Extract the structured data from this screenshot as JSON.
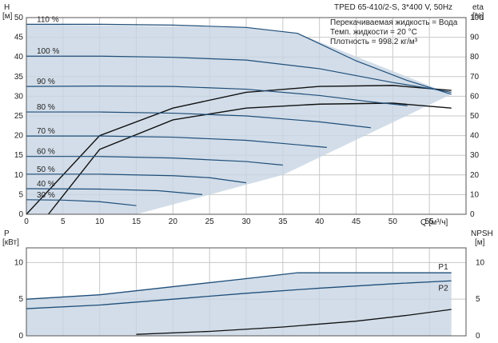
{
  "chart_data": [
    {
      "type": "line",
      "title": "TPED 65-410/2-S, 3*400 V, 50Hz",
      "annotations": [
        "Перекачиваемая жидкость = Вода",
        "Темп. жидкости = 20 °C",
        "Плотность = 998.2 кг/м³"
      ],
      "xlabel": "Q [м³/ч]",
      "ylabel_left": "H",
      "ylabel_left_unit": "[м]",
      "ylabel_right": "eta",
      "ylabel_right_unit": "[%]",
      "xlim": [
        0,
        60
      ],
      "ylim_left": [
        0,
        50
      ],
      "ylim_right": [
        0,
        100
      ],
      "xticks": [
        0,
        5,
        10,
        15,
        20,
        25,
        30,
        35,
        40,
        45,
        50,
        55
      ],
      "yticks_left": [
        0,
        5,
        10,
        15,
        20,
        25,
        30,
        35,
        40,
        45,
        50
      ],
      "yticks_right": [
        0,
        10,
        20,
        30,
        40,
        50,
        60,
        70,
        80,
        90,
        100
      ],
      "grid": true,
      "series": [
        {
          "name": "110 %",
          "x": [
            0,
            10,
            20,
            30,
            37,
            45,
            52,
            58
          ],
          "y": [
            48.3,
            48.3,
            48.1,
            47.5,
            46,
            39,
            34,
            30.5
          ]
        },
        {
          "name": "100 %",
          "x": [
            0,
            10,
            20,
            30,
            40,
            50,
            55,
            58
          ],
          "y": [
            40.2,
            40.2,
            39.9,
            39.2,
            37,
            33.5,
            32,
            31
          ]
        },
        {
          "name": "90 %",
          "x": [
            0,
            10,
            20,
            30,
            40,
            47,
            52
          ],
          "y": [
            32.5,
            32.6,
            32.5,
            31.8,
            30.2,
            28.6,
            27.6
          ]
        },
        {
          "name": "80 %",
          "x": [
            0,
            10,
            20,
            30,
            40,
            47
          ],
          "y": [
            26,
            26,
            25.7,
            25,
            23.5,
            22
          ]
        },
        {
          "name": "70 %",
          "x": [
            0,
            10,
            20,
            30,
            35,
            41
          ],
          "y": [
            19.9,
            19.9,
            19.6,
            18.8,
            18,
            17
          ]
        },
        {
          "name": "60 %",
          "x": [
            0,
            10,
            20,
            30,
            35
          ],
          "y": [
            14.7,
            14.7,
            14.3,
            13.4,
            12.5
          ]
        },
        {
          "name": "50 %",
          "x": [
            0,
            10,
            20,
            25,
            30
          ],
          "y": [
            10.2,
            10.2,
            9.8,
            9.3,
            8
          ]
        },
        {
          "name": "40 %",
          "x": [
            0,
            10,
            18,
            24
          ],
          "y": [
            6.5,
            6.4,
            6.0,
            5.0
          ]
        },
        {
          "name": "30 %",
          "x": [
            0,
            5,
            10,
            15
          ],
          "y": [
            3.7,
            3.6,
            3.2,
            2.2
          ]
        }
      ],
      "efficiency_series": [
        {
          "x": [
            0,
            10,
            20,
            30,
            40,
            50,
            58
          ],
          "y": [
            0,
            40,
            54,
            62,
            65,
            65.5,
            63
          ]
        },
        {
          "x": [
            3,
            10,
            20,
            30,
            40,
            50,
            58
          ],
          "y": [
            0,
            33,
            48,
            54,
            56,
            56.5,
            54
          ]
        }
      ],
      "operating_area_vertices": [
        [
          0,
          48.3
        ],
        [
          30,
          47.5
        ],
        [
          37,
          46
        ],
        [
          58,
          30.5
        ],
        [
          35,
          10
        ],
        [
          15,
          0
        ],
        [
          0,
          0
        ]
      ]
    },
    {
      "type": "line",
      "ylabel_left": "P",
      "ylabel_left_unit": "[кВт]",
      "ylabel_right": "NPSH",
      "ylabel_right_unit": "[м]",
      "xlim": [
        0,
        60
      ],
      "ylim_left": [
        0,
        12
      ],
      "ylim_right": [
        0,
        12
      ],
      "yticks_left": [
        0,
        5,
        10
      ],
      "yticks_right": [
        0,
        5,
        10
      ],
      "grid": true,
      "series": [
        {
          "name": "P1",
          "x": [
            0,
            10,
            20,
            30,
            37,
            45,
            52,
            58
          ],
          "y": [
            5.0,
            5.6,
            6.7,
            7.8,
            8.6,
            8.6,
            8.6,
            8.6
          ]
        },
        {
          "name": "P2",
          "x": [
            0,
            10,
            20,
            30,
            40,
            50,
            58
          ],
          "y": [
            3.7,
            4.2,
            5.0,
            5.8,
            6.5,
            7.1,
            7.5
          ]
        },
        {
          "name": "NPSH",
          "x": [
            15,
            25,
            35,
            45,
            52,
            58
          ],
          "y": [
            0.2,
            0.6,
            1.2,
            2.0,
            2.8,
            3.6
          ]
        }
      ]
    }
  ]
}
